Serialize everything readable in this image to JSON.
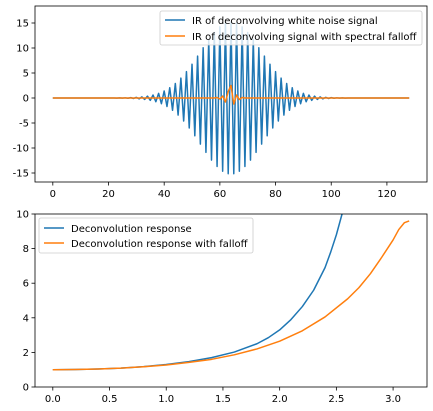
{
  "chart_data": [
    {
      "type": "line",
      "title": "",
      "xlabel": "",
      "ylabel": "",
      "xlim": [
        -6.4,
        134.4
      ],
      "ylim": [
        -16.8,
        18.4
      ],
      "xticks": [
        0,
        20,
        40,
        60,
        80,
        100,
        120
      ],
      "yticks": [
        -15,
        -10,
        -5,
        0,
        5,
        10,
        15
      ],
      "grid": false,
      "legend_placement": "upper right",
      "series": [
        {
          "name": "IR of deconvolving white noise signal",
          "color": "#1f77b4",
          "description_of_shape": "oscillating signal alternating sign each sample, amplitude envelope peaking near 15 at x=64 and decaying to ~0 toward both ends",
          "x_range": [
            0,
            128
          ],
          "peak_x": 64,
          "peak_amplitude": 15.2
        },
        {
          "name": "IR of deconvolving signal with spectral falloff",
          "color": "#ff7f0e",
          "description_of_shape": "near zero everywhere except a short burst at the center",
          "x_range": [
            0,
            128
          ],
          "points": [
            [
              0,
              0
            ],
            [
              58,
              0
            ],
            [
              59,
              0.1
            ],
            [
              60,
              -0.2
            ],
            [
              61,
              0.4
            ],
            [
              62,
              -0.8
            ],
            [
              63,
              1.3
            ],
            [
              64,
              2.5
            ],
            [
              65,
              -1.2
            ],
            [
              66,
              0.6
            ],
            [
              67,
              -0.3
            ],
            [
              68,
              0.1
            ],
            [
              69,
              0
            ],
            [
              128,
              0
            ]
          ]
        }
      ]
    },
    {
      "type": "line",
      "title": "",
      "xlabel": "",
      "ylabel": "",
      "xlim": [
        -0.157,
        3.299
      ],
      "ylim": [
        0,
        10
      ],
      "xticks": [
        0.0,
        0.5,
        1.0,
        1.5,
        2.0,
        2.5,
        3.0
      ],
      "xtick_labels": [
        "0.0",
        "0.5",
        "1.0",
        "1.5",
        "2.0",
        "2.5",
        "3.0"
      ],
      "yticks": [
        0,
        2,
        4,
        6,
        8,
        10
      ],
      "grid": false,
      "legend_placement": "upper left",
      "series": [
        {
          "name": "Deconvolution response",
          "color": "#1f77b4",
          "points": [
            [
              0.0,
              1.0
            ],
            [
              0.2,
              1.01
            ],
            [
              0.4,
              1.04
            ],
            [
              0.6,
              1.09
            ],
            [
              0.8,
              1.18
            ],
            [
              1.0,
              1.3
            ],
            [
              1.2,
              1.47
            ],
            [
              1.4,
              1.7
            ],
            [
              1.6,
              2.02
            ],
            [
              1.8,
              2.5
            ],
            [
              1.9,
              2.85
            ],
            [
              2.0,
              3.3
            ],
            [
              2.1,
              3.9
            ],
            [
              2.2,
              4.65
            ],
            [
              2.3,
              5.6
            ],
            [
              2.4,
              6.9
            ],
            [
              2.45,
              7.8
            ],
            [
              2.5,
              8.8
            ],
            [
              2.55,
              10.0
            ],
            [
              2.6,
              11.3
            ]
          ]
        },
        {
          "name": "Deconvolution response with falloff",
          "color": "#ff7f0e",
          "points": [
            [
              0.0,
              1.0
            ],
            [
              0.2,
              1.01
            ],
            [
              0.4,
              1.04
            ],
            [
              0.6,
              1.09
            ],
            [
              0.8,
              1.17
            ],
            [
              1.0,
              1.27
            ],
            [
              1.2,
              1.42
            ],
            [
              1.4,
              1.6
            ],
            [
              1.6,
              1.86
            ],
            [
              1.8,
              2.2
            ],
            [
              2.0,
              2.65
            ],
            [
              2.2,
              3.25
            ],
            [
              2.4,
              4.05
            ],
            [
              2.6,
              5.1
            ],
            [
              2.7,
              5.75
            ],
            [
              2.8,
              6.55
            ],
            [
              2.9,
              7.5
            ],
            [
              3.0,
              8.5
            ],
            [
              3.05,
              9.1
            ],
            [
              3.1,
              9.5
            ],
            [
              3.14159,
              9.6
            ]
          ]
        }
      ]
    }
  ]
}
